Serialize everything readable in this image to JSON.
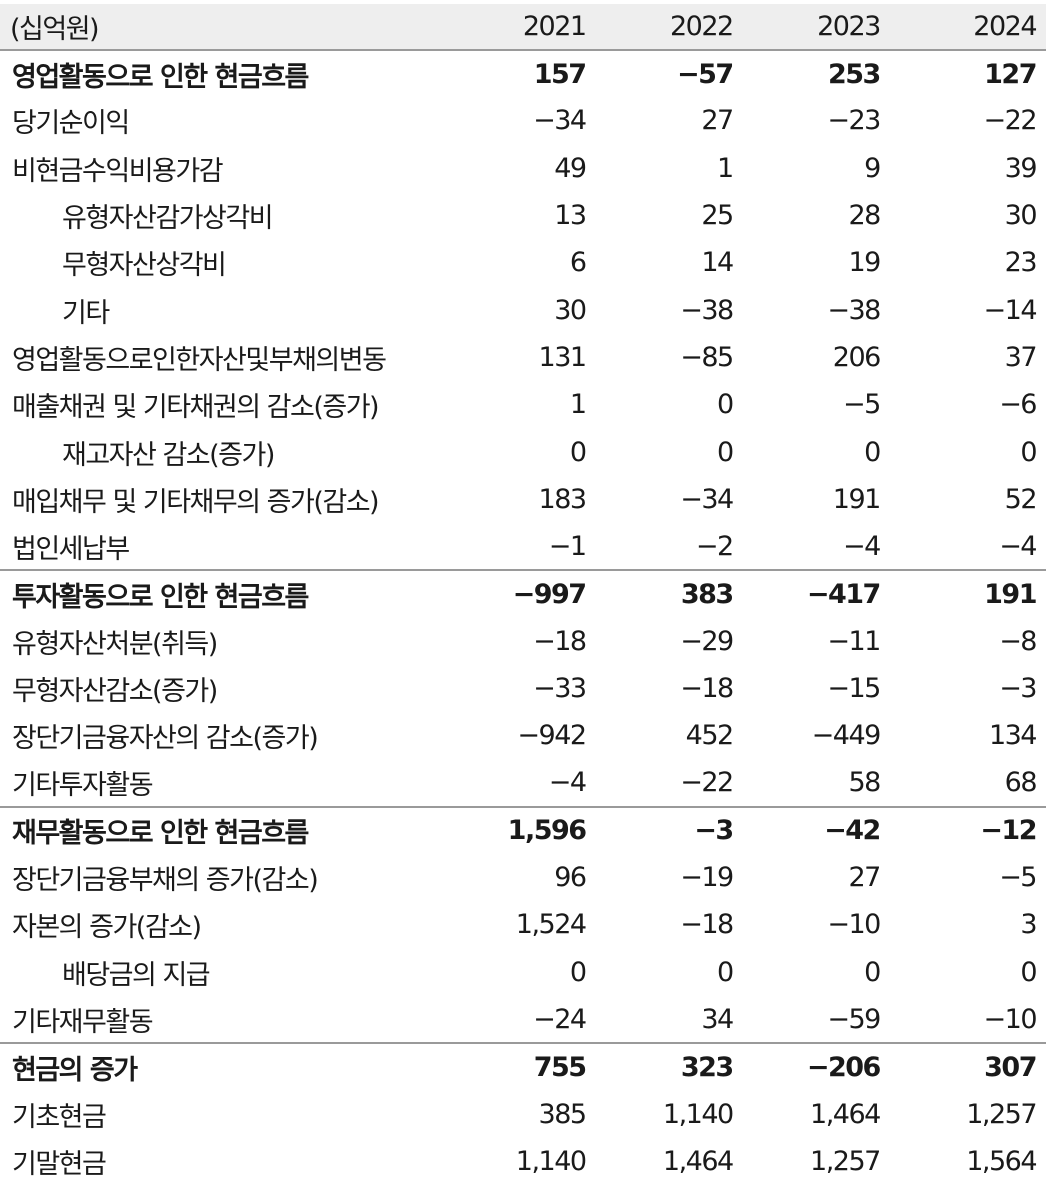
{
  "header": {
    "unit": "(십억원)",
    "years": [
      "2021",
      "2022",
      "2023",
      "2024"
    ]
  },
  "rows": [
    {
      "label": "영업활동으로 인한 현금흐름",
      "values": [
        "157",
        "−57",
        "253",
        "127"
      ],
      "style": "bold",
      "sep": false
    },
    {
      "label": "당기순이익",
      "values": [
        "−34",
        "27",
        "−23",
        "−22"
      ],
      "style": "normal",
      "sep": false
    },
    {
      "label": "비현금수익비용가감",
      "values": [
        "49",
        "1",
        "9",
        "39"
      ],
      "style": "normal",
      "sep": false
    },
    {
      "label": "유형자산감가상각비",
      "values": [
        "13",
        "25",
        "28",
        "30"
      ],
      "style": "indent",
      "sep": false
    },
    {
      "label": "무형자산상각비",
      "values": [
        "6",
        "14",
        "19",
        "23"
      ],
      "style": "indent",
      "sep": false
    },
    {
      "label": "기타",
      "values": [
        "30",
        "−38",
        "−38",
        "−14"
      ],
      "style": "indent",
      "sep": false
    },
    {
      "label": "영업활동으로인한자산및부채의변동",
      "values": [
        "131",
        "−85",
        "206",
        "37"
      ],
      "style": "normal",
      "sep": false
    },
    {
      "label": "매출채권 및 기타채권의 감소(증가)",
      "values": [
        "1",
        "0",
        "−5",
        "−6"
      ],
      "style": "normal",
      "sep": false
    },
    {
      "label": "재고자산 감소(증가)",
      "values": [
        "0",
        "0",
        "0",
        "0"
      ],
      "style": "indent",
      "sep": false
    },
    {
      "label": "매입채무 및 기타채무의 증가(감소)",
      "values": [
        "183",
        "−34",
        "191",
        "52"
      ],
      "style": "normal",
      "sep": false
    },
    {
      "label": "법인세납부",
      "values": [
        "−1",
        "−2",
        "−4",
        "−4"
      ],
      "style": "normal",
      "sep": false
    },
    {
      "label": "투자활동으로 인한 현금흐름",
      "values": [
        "−997",
        "383",
        "−417",
        "191"
      ],
      "style": "bold",
      "sep": true
    },
    {
      "label": "유형자산처분(취득)",
      "values": [
        "−18",
        "−29",
        "−11",
        "−8"
      ],
      "style": "normal",
      "sep": false
    },
    {
      "label": "무형자산감소(증가)",
      "values": [
        "−33",
        "−18",
        "−15",
        "−3"
      ],
      "style": "normal",
      "sep": false
    },
    {
      "label": "장단기금융자산의 감소(증가)",
      "values": [
        "−942",
        "452",
        "−449",
        "134"
      ],
      "style": "normal",
      "sep": false
    },
    {
      "label": "기타투자활동",
      "values": [
        "−4",
        "−22",
        "58",
        "68"
      ],
      "style": "normal",
      "sep": false
    },
    {
      "label": "재무활동으로 인한 현금흐름",
      "values": [
        "1,596",
        "−3",
        "−42",
        "−12"
      ],
      "style": "bold",
      "sep": true
    },
    {
      "label": "장단기금융부채의 증가(감소)",
      "values": [
        "96",
        "−19",
        "27",
        "−5"
      ],
      "style": "normal",
      "sep": false
    },
    {
      "label": "자본의 증가(감소)",
      "values": [
        "1,524",
        "−18",
        "−10",
        "3"
      ],
      "style": "normal",
      "sep": false
    },
    {
      "label": "배당금의 지급",
      "values": [
        "0",
        "0",
        "0",
        "0"
      ],
      "style": "indent",
      "sep": false
    },
    {
      "label": "기타재무활동",
      "values": [
        "−24",
        "34",
        "−59",
        "−10"
      ],
      "style": "normal",
      "sep": false
    },
    {
      "label": "현금의 증가",
      "values": [
        "755",
        "323",
        "−206",
        "307"
      ],
      "style": "bold",
      "sep": true
    },
    {
      "label": "기초현금",
      "values": [
        "385",
        "1,140",
        "1,464",
        "1,257"
      ],
      "style": "normal",
      "sep": false
    },
    {
      "label": "기말현금",
      "values": [
        "1,140",
        "1,464",
        "1,257",
        "1,564"
      ],
      "style": "normal",
      "sep": false
    }
  ]
}
